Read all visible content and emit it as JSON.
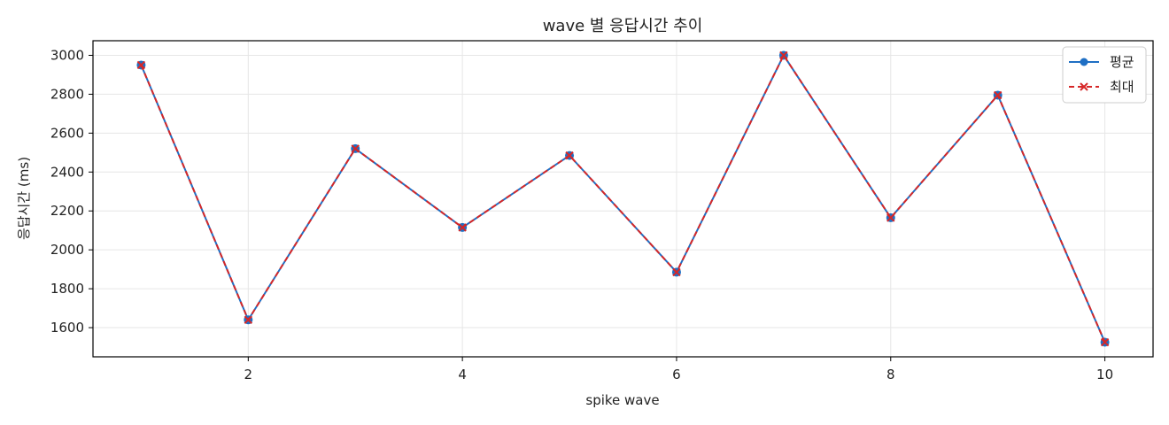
{
  "chart_data": {
    "type": "line",
    "title": "wave 별 응답시간 추이",
    "xlabel": "spike wave",
    "ylabel": "응답시간 (ms)",
    "x": [
      1,
      2,
      3,
      4,
      5,
      6,
      7,
      8,
      9,
      10
    ],
    "xticks": [
      2,
      4,
      6,
      8,
      10
    ],
    "yticks": [
      1600,
      1800,
      2000,
      2200,
      2400,
      2600,
      2800,
      3000
    ],
    "xlim": [
      0.55,
      10.45
    ],
    "ylim": [
      1450,
      3075
    ],
    "grid": true,
    "legend_position": "top-right",
    "series": [
      {
        "name": "평균",
        "color": "#1f6fc4",
        "marker": "circle",
        "line_style": "solid",
        "values": [
          2950,
          1640,
          2520,
          2115,
          2485,
          1885,
          3000,
          2165,
          2795,
          1525
        ]
      },
      {
        "name": "최대",
        "color": "#d62728",
        "marker": "x",
        "line_style": "dashed",
        "values": [
          2950,
          1640,
          2520,
          2115,
          2485,
          1885,
          3000,
          2165,
          2795,
          1525
        ]
      }
    ]
  }
}
